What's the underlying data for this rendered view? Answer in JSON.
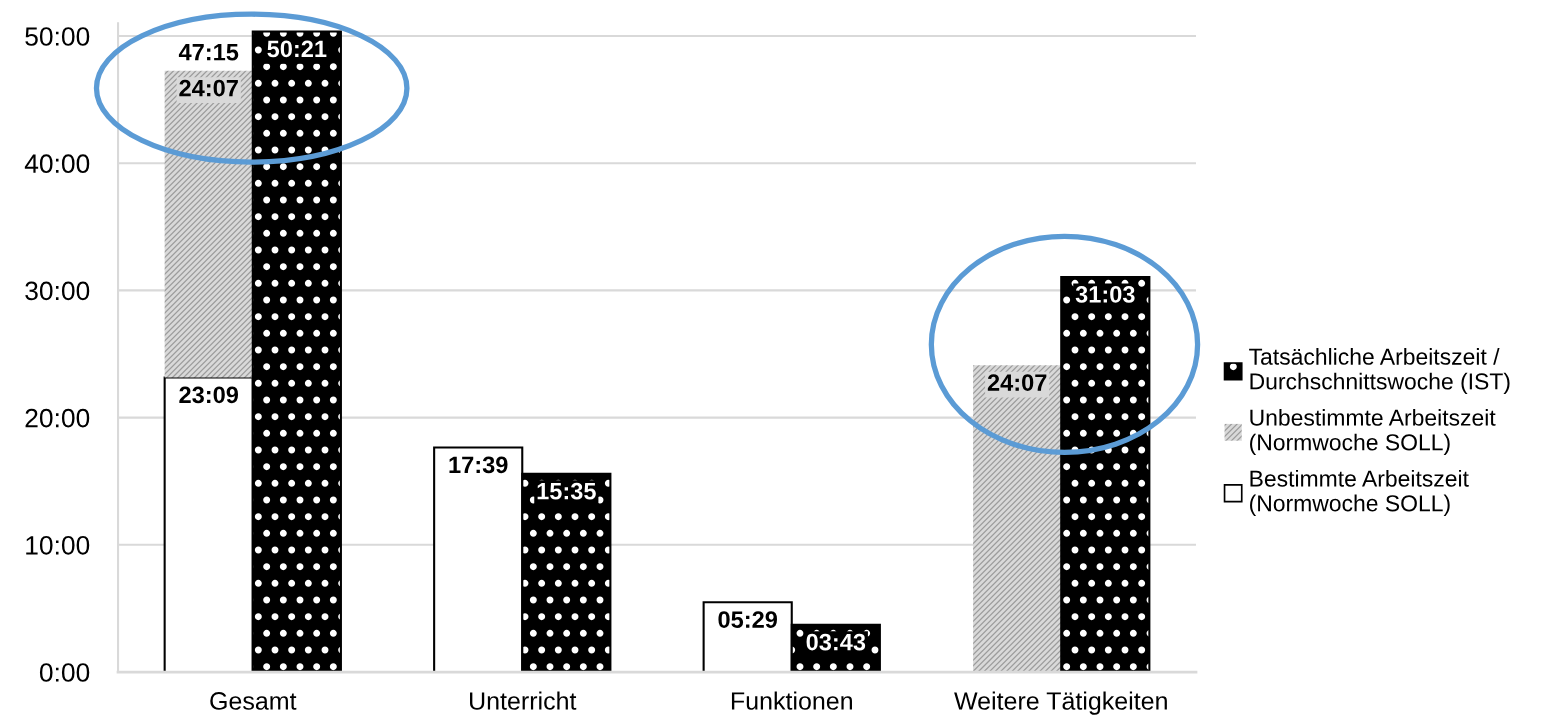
{
  "chart_data": {
    "type": "bar",
    "categories": [
      "Gesamt",
      "Unterricht",
      "Funktionen",
      "Weitere Tätigkeiten"
    ],
    "series": [
      {
        "name": "Bestimmte Arbeitszeit\n(Normwoche SOLL)",
        "color": "#ffffff",
        "values": [
          23.15,
          17.65,
          5.483,
          null
        ],
        "value_labels": [
          "23:09",
          "17:39",
          "05:29",
          null
        ]
      },
      {
        "name": "Unbestimmte Arbeitszeit\n(Normwoche SOLL)",
        "color": "#d9d9d9",
        "values": [
          24.117,
          null,
          null,
          24.117
        ],
        "base": [
          23.15,
          null,
          null,
          0
        ],
        "value_labels": [
          "24:07",
          null,
          null,
          "24:07"
        ]
      },
      {
        "name": "Tatsächliche Arbeitszeit /\nDurchschnittswoche (IST)",
        "color": "#000000",
        "values": [
          50.35,
          15.583,
          3.717,
          31.05
        ],
        "value_labels": [
          "50:21",
          "15:35",
          "03:43",
          "31:03"
        ]
      }
    ],
    "annotations": [
      {
        "text": "47:15",
        "x": "Gesamt",
        "y": 47.267
      }
    ],
    "ylim": [
      0,
      51
    ],
    "yticks": [
      {
        "value": 0,
        "label": "0:00"
      },
      {
        "value": 10,
        "label": "10:00"
      },
      {
        "value": 20,
        "label": "20:00"
      },
      {
        "value": 30,
        "label": "30:00"
      },
      {
        "value": 40,
        "label": "40:00"
      },
      {
        "value": 50,
        "label": "50:00"
      }
    ],
    "grid": "y",
    "legend": "right"
  }
}
